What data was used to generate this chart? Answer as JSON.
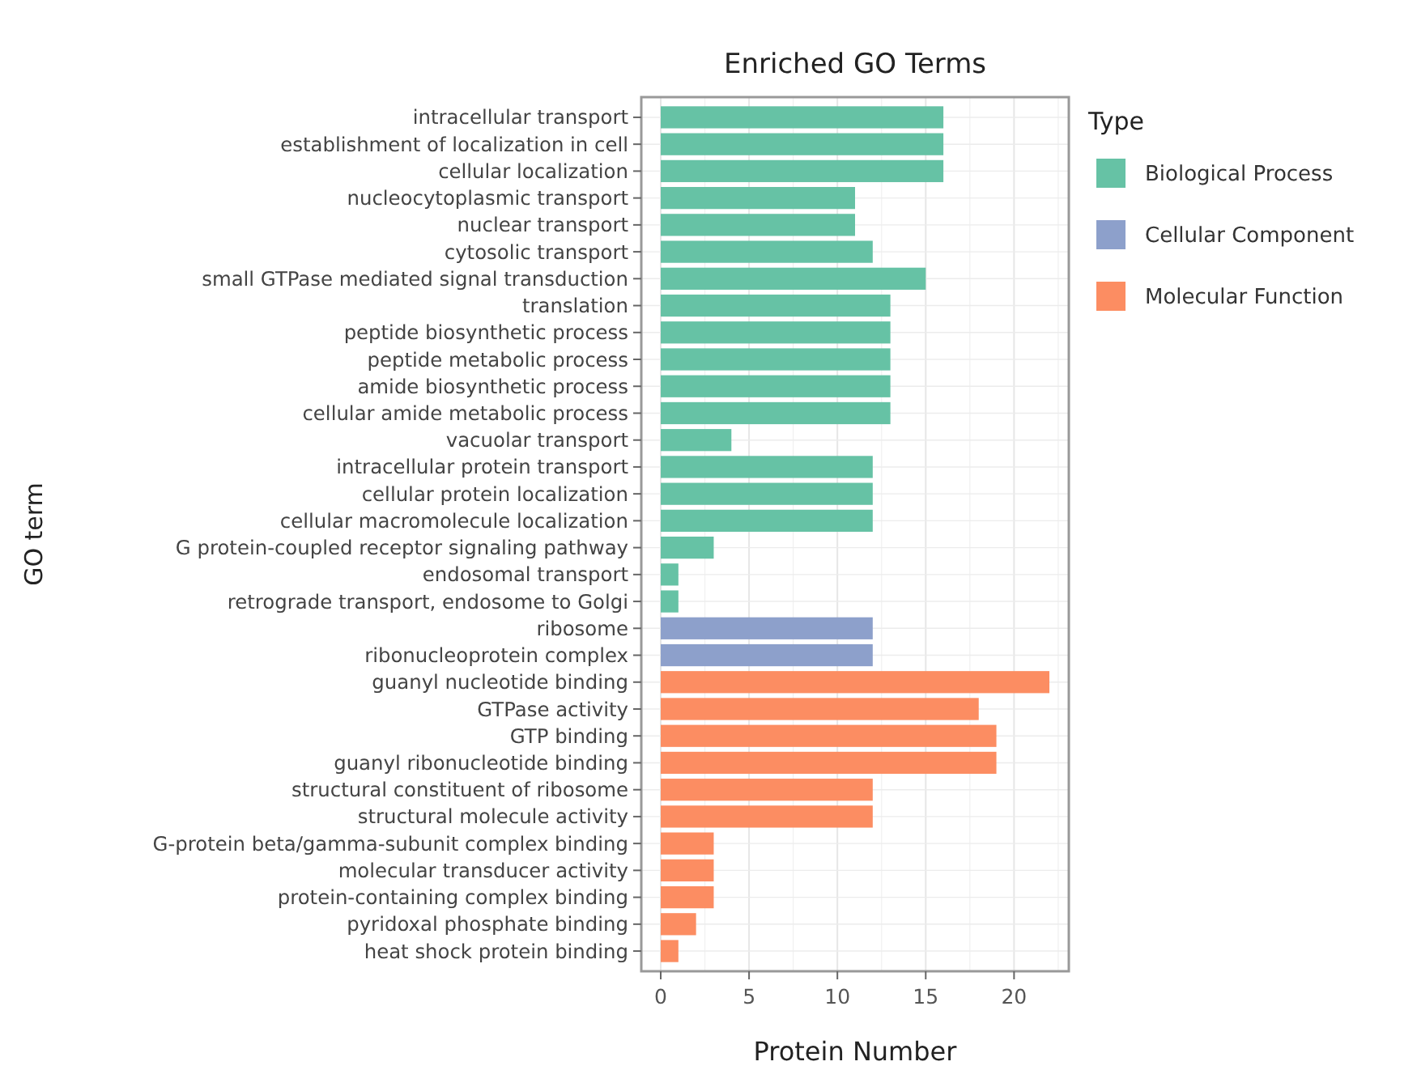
{
  "chart_data": {
    "type": "bar",
    "orientation": "horizontal",
    "title": "Enriched GO Terms",
    "xlabel": "Protein Number",
    "ylabel": "GO term",
    "legend_title": "Type",
    "legend": "right",
    "grid": true,
    "categories": [
      "intracellular transport",
      "establishment of localization in cell",
      "cellular localization",
      "nucleocytoplasmic transport",
      "nuclear transport",
      "cytosolic transport",
      "small GTPase mediated signal transduction",
      "translation",
      "peptide biosynthetic process",
      "peptide metabolic process",
      "amide biosynthetic process",
      "cellular amide metabolic process",
      "vacuolar transport",
      "intracellular protein transport",
      "cellular protein localization",
      "cellular macromolecule localization",
      "G protein-coupled receptor signaling pathway",
      "endosomal transport",
      "retrograde transport, endosome to Golgi",
      "ribosome",
      "ribonucleoprotein complex",
      "guanyl nucleotide binding",
      "GTPase activity",
      "GTP binding",
      "guanyl ribonucleotide binding",
      "structural constituent of ribosome",
      "structural molecule activity",
      "G-protein beta/gamma-subunit complex binding",
      "molecular transducer activity",
      "protein-containing complex binding",
      "pyridoxal phosphate binding",
      "heat shock protein binding"
    ],
    "series": [
      {
        "name": "Biological Process",
        "color": "#66c2a5",
        "values": [
          16,
          16,
          16,
          11,
          11,
          12,
          15,
          13,
          13,
          13,
          13,
          13,
          4,
          12,
          12,
          12,
          3,
          1,
          1,
          null,
          null,
          null,
          null,
          null,
          null,
          null,
          null,
          null,
          null,
          null,
          null,
          null
        ]
      },
      {
        "name": "Cellular Component",
        "color": "#8da0cb",
        "values": [
          null,
          null,
          null,
          null,
          null,
          null,
          null,
          null,
          null,
          null,
          null,
          null,
          null,
          null,
          null,
          null,
          null,
          null,
          null,
          12,
          12,
          null,
          null,
          null,
          null,
          null,
          null,
          null,
          null,
          null,
          null,
          null
        ]
      },
      {
        "name": "Molecular Function",
        "color": "#fc8d62",
        "values": [
          null,
          null,
          null,
          null,
          null,
          null,
          null,
          null,
          null,
          null,
          null,
          null,
          null,
          null,
          null,
          null,
          null,
          null,
          null,
          null,
          null,
          22,
          18,
          19,
          19,
          12,
          12,
          3,
          3,
          3,
          2,
          1
        ]
      }
    ],
    "xlim": [
      -1.1,
      23.1
    ],
    "xticks": [
      0,
      5,
      10,
      15,
      20
    ]
  }
}
